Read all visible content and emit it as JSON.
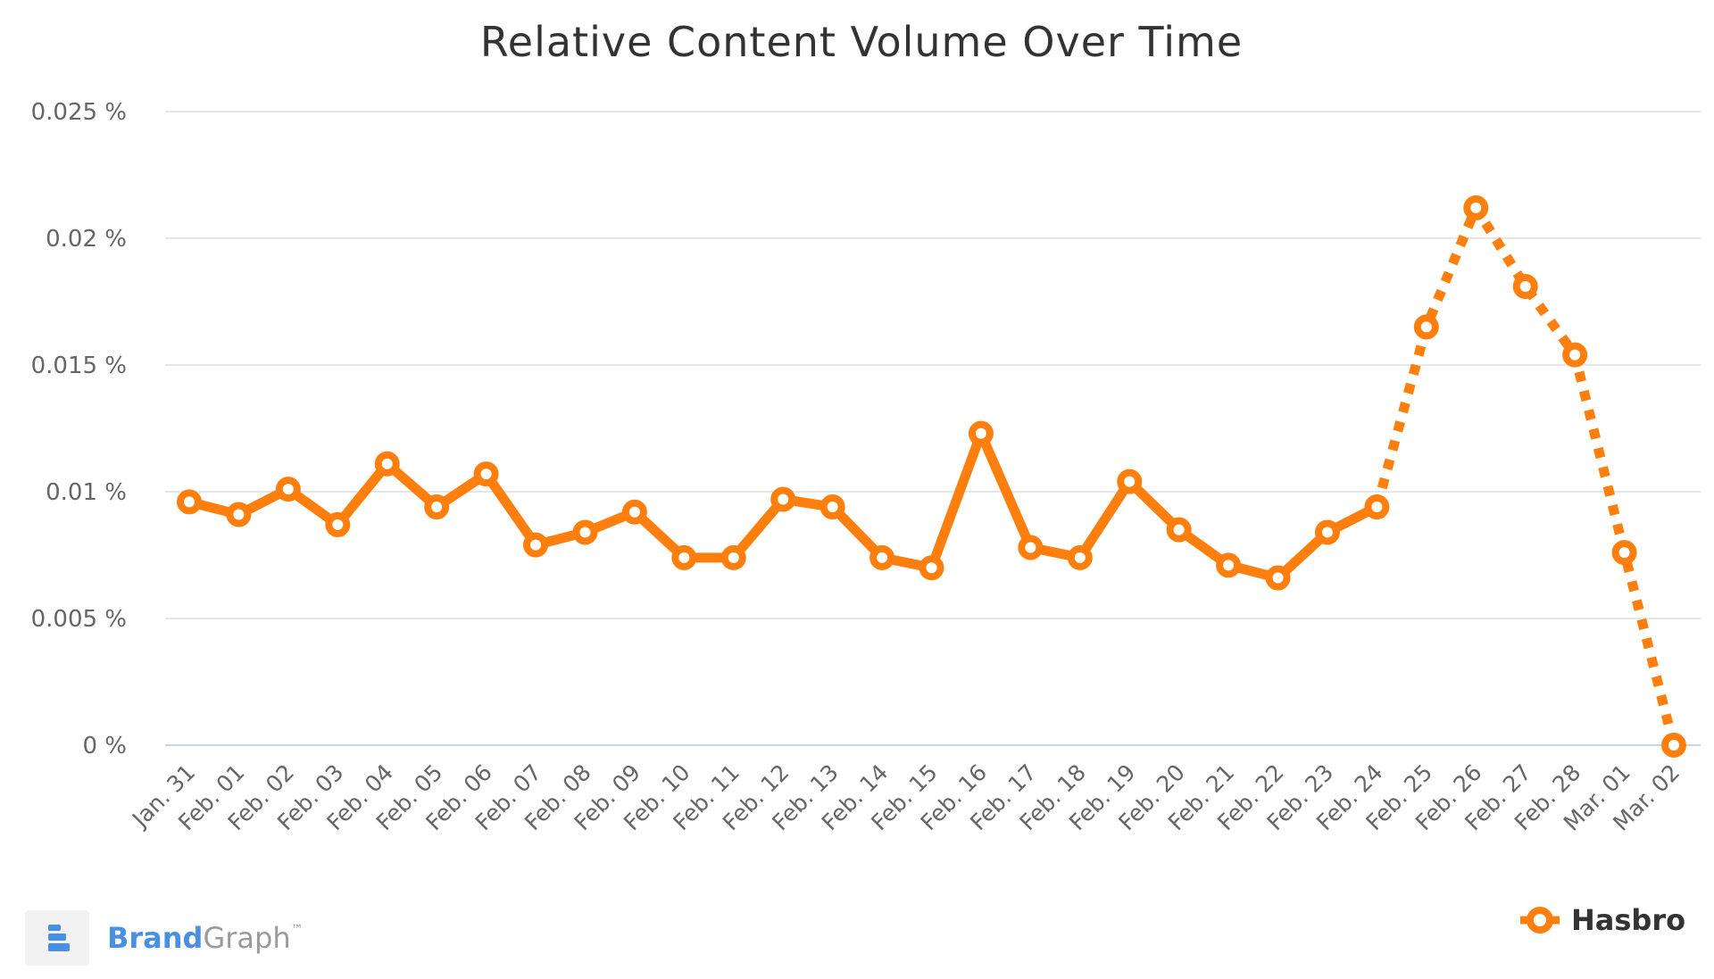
{
  "chart_data": {
    "type": "line",
    "title": "Relative Content Volume Over Time",
    "xlabel": "",
    "ylabel": "",
    "y_ticks": [
      "0 %",
      "0.005 %",
      "0.01 %",
      "0.015 %",
      "0.02 %",
      "0.025 %"
    ],
    "y_tick_values": [
      0,
      0.005,
      0.01,
      0.015,
      0.02,
      0.025
    ],
    "ylim": [
      0,
      0.025
    ],
    "grid": true,
    "legend_position": "bottom-right",
    "categories": [
      "Jan. 31",
      "Feb. 01",
      "Feb. 02",
      "Feb. 03",
      "Feb. 04",
      "Feb. 05",
      "Feb. 06",
      "Feb. 07",
      "Feb. 08",
      "Feb. 09",
      "Feb. 10",
      "Feb. 11",
      "Feb. 12",
      "Feb. 13",
      "Feb. 14",
      "Feb. 15",
      "Feb. 16",
      "Feb. 17",
      "Feb. 18",
      "Feb. 19",
      "Feb. 20",
      "Feb. 21",
      "Feb. 22",
      "Feb. 23",
      "Feb. 24",
      "Feb. 25",
      "Feb. 26",
      "Feb. 27",
      "Feb. 28",
      "Mar. 01",
      "Mar. 02"
    ],
    "series": [
      {
        "name": "Hasbro",
        "color": "#ff7f0e",
        "values": [
          0.0096,
          0.0091,
          0.0101,
          0.0087,
          0.0111,
          0.0094,
          0.0107,
          0.0079,
          0.0084,
          0.0092,
          0.0074,
          0.0074,
          0.0097,
          0.0094,
          0.0074,
          0.007,
          0.0123,
          0.0078,
          0.0074,
          0.0104,
          0.0085,
          0.0071,
          0.0066,
          0.0084,
          0.0094,
          0.0165,
          0.0212,
          0.0181,
          0.0154,
          0.0076,
          0.0
        ],
        "dashed_from_category": "Feb. 24"
      }
    ]
  },
  "brand": {
    "name_part1": "Brand",
    "name_part2": "Graph",
    "trademark": "™",
    "logo_icon": "brandgraph-logo-icon",
    "color_part1": "#4a90e2",
    "color_part2": "#9b9b9b"
  }
}
